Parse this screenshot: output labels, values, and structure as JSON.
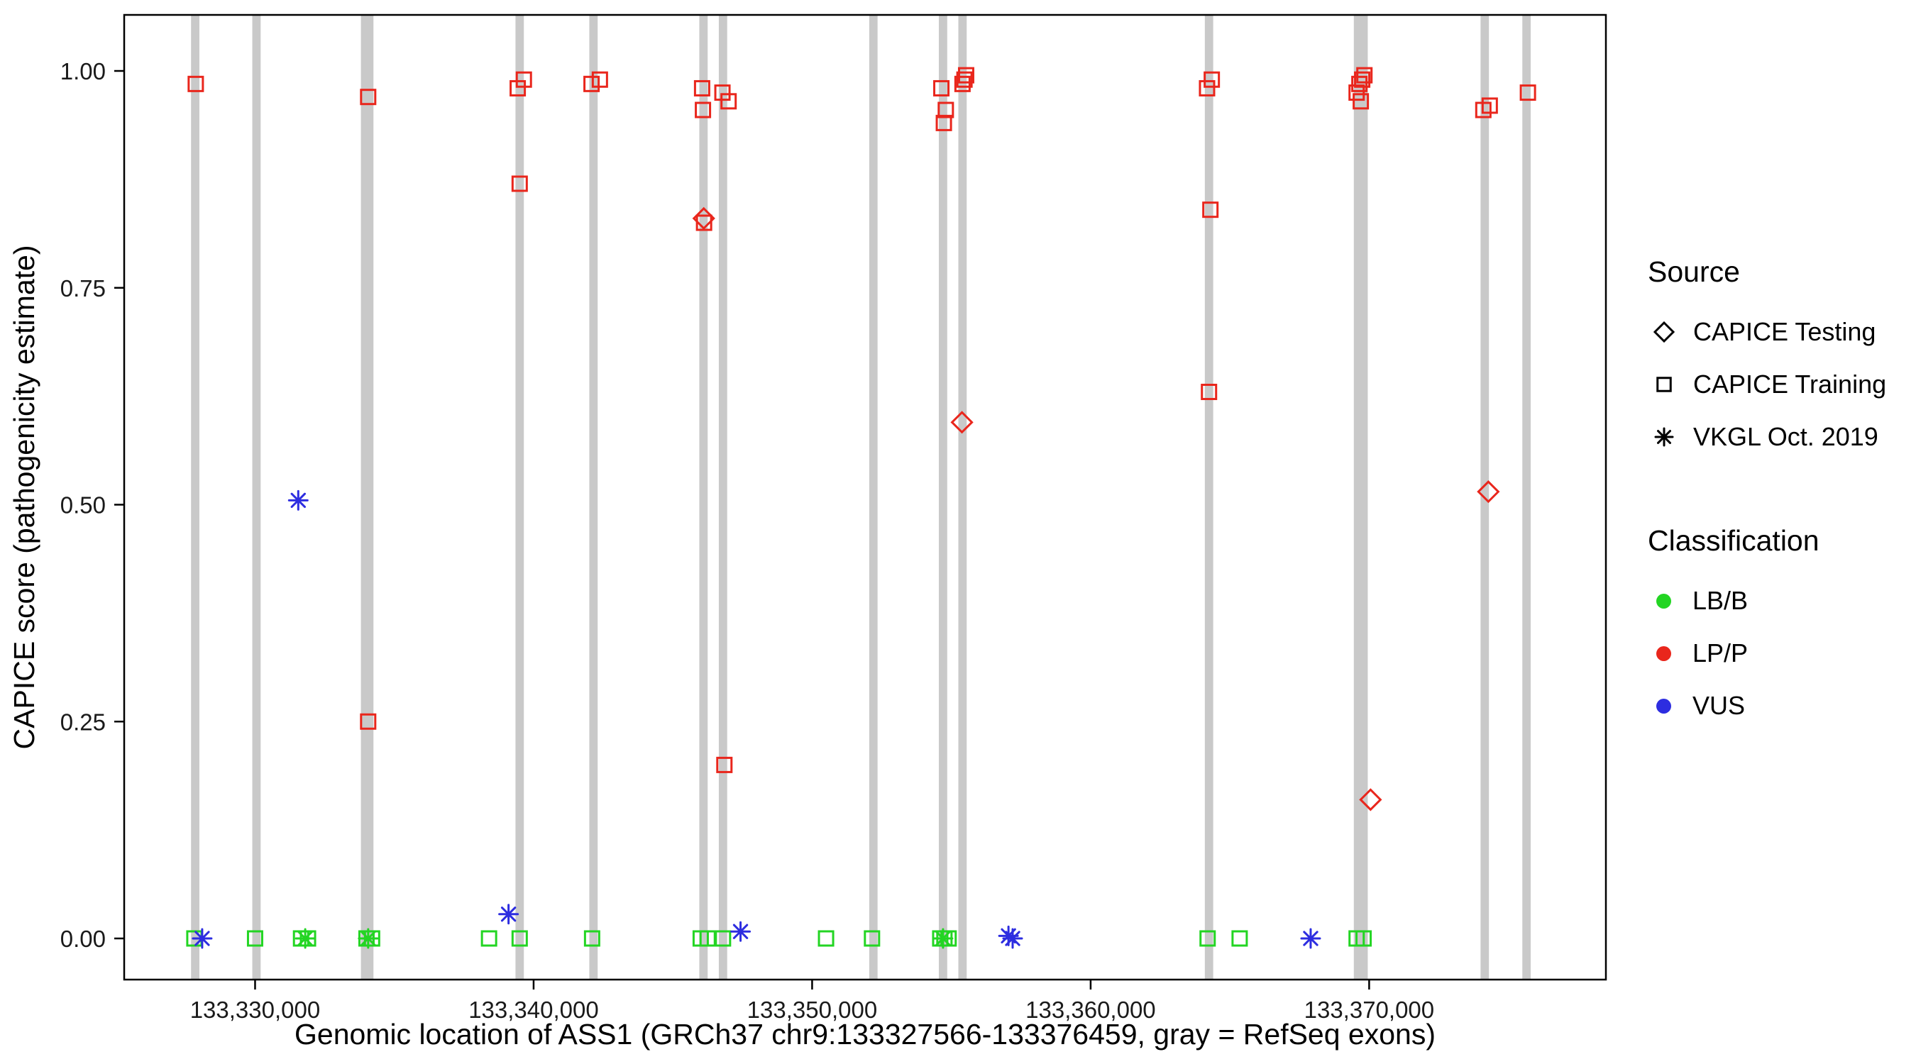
{
  "figure": {
    "background": "#ffffff"
  },
  "chart_data": {
    "type": "scatter",
    "title": "",
    "xlabel": "Genomic location of ASS1 (GRCh37 chr9:133327566-133376459, gray = RefSeq exons)",
    "ylabel": "CAPICE score (pathogenicity estimate)",
    "x_domain": [
      133325300,
      133378500
    ],
    "y_domain": [
      0,
      1
    ],
    "grid": false,
    "legend_position": "right",
    "x_ticks": [
      {
        "value": 133330000,
        "label": "133,330,000"
      },
      {
        "value": 133340000,
        "label": "133,340,000"
      },
      {
        "value": 133350000,
        "label": "133,350,000"
      },
      {
        "value": 133360000,
        "label": "133,360,000"
      },
      {
        "value": 133370000,
        "label": "133,370,000"
      }
    ],
    "y_ticks": [
      {
        "value": 0,
        "label": "0.00"
      },
      {
        "value": 0.25,
        "label": "0.25"
      },
      {
        "value": 0.5,
        "label": "0.50"
      },
      {
        "value": 0.75,
        "label": "0.75"
      },
      {
        "value": 1,
        "label": "1.00"
      }
    ],
    "exon_color": "#c9c9c9",
    "exons": [
      [
        133327700,
        133328000
      ],
      [
        133329900,
        133330200
      ],
      [
        133333800,
        133334250
      ],
      [
        133339350,
        133339650
      ],
      [
        133342000,
        133342300
      ],
      [
        133345950,
        133346250
      ],
      [
        133346650,
        133346950
      ],
      [
        133352050,
        133352350
      ],
      [
        133354550,
        133354850
      ],
      [
        133355250,
        133355550
      ],
      [
        133364100,
        133364400
      ],
      [
        133369450,
        133369950
      ],
      [
        133374000,
        133374300
      ],
      [
        133375500,
        133375800
      ]
    ],
    "series": [
      {
        "name": "CAPICE Training LP/P",
        "source": "CAPICE Training",
        "classification": "LP/P",
        "shape": "square",
        "color": "#e9261c",
        "points": [
          [
            133327870,
            0.985
          ],
          [
            133334060,
            0.97
          ],
          [
            133334060,
            0.25
          ],
          [
            133339430,
            0.98
          ],
          [
            133339650,
            0.99
          ],
          [
            133339500,
            0.87
          ],
          [
            133342080,
            0.985
          ],
          [
            133342380,
            0.99
          ],
          [
            133346050,
            0.98
          ],
          [
            133346080,
            0.955
          ],
          [
            133346120,
            0.825
          ],
          [
            133346780,
            0.975
          ],
          [
            133347000,
            0.965
          ],
          [
            133346850,
            0.2
          ],
          [
            133354640,
            0.98
          ],
          [
            133354800,
            0.955
          ],
          [
            133354730,
            0.94
          ],
          [
            133355400,
            0.985
          ],
          [
            133355470,
            0.99
          ],
          [
            133355530,
            0.995
          ],
          [
            133364180,
            0.98
          ],
          [
            133364350,
            0.99
          ],
          [
            133364300,
            0.84
          ],
          [
            133364250,
            0.63
          ],
          [
            133369550,
            0.975
          ],
          [
            133369650,
            0.985
          ],
          [
            133369750,
            0.99
          ],
          [
            133369830,
            0.995
          ],
          [
            133369700,
            0.965
          ],
          [
            133374100,
            0.955
          ],
          [
            133374330,
            0.96
          ],
          [
            133375700,
            0.975
          ]
        ]
      },
      {
        "name": "CAPICE Training LB/B",
        "source": "CAPICE Training",
        "classification": "LB/B",
        "shape": "square",
        "color": "#23d523",
        "points": [
          [
            133327820,
            0
          ],
          [
            133330000,
            0
          ],
          [
            133331650,
            0
          ],
          [
            133331900,
            0
          ],
          [
            133334000,
            0
          ],
          [
            133334200,
            0
          ],
          [
            133338400,
            0
          ],
          [
            133339500,
            0
          ],
          [
            133342100,
            0
          ],
          [
            133346000,
            0
          ],
          [
            133346250,
            0
          ],
          [
            133346800,
            0
          ],
          [
            133350500,
            0
          ],
          [
            133352150,
            0
          ],
          [
            133354600,
            0
          ],
          [
            133354750,
            0
          ],
          [
            133354900,
            0
          ],
          [
            133364200,
            0
          ],
          [
            133365350,
            0
          ],
          [
            133369550,
            0
          ],
          [
            133369800,
            0
          ]
        ]
      },
      {
        "name": "CAPICE Testing LP/P",
        "source": "CAPICE Testing",
        "classification": "LP/P",
        "shape": "diamond",
        "color": "#e9261c",
        "points": [
          [
            133346110,
            0.83
          ],
          [
            133355380,
            0.595
          ],
          [
            133370050,
            0.16
          ],
          [
            133374280,
            0.515
          ]
        ]
      },
      {
        "name": "VKGL Oct. 2019 VUS",
        "source": "VKGL Oct. 2019",
        "classification": "VUS",
        "shape": "asterisk",
        "color": "#2d2de0",
        "points": [
          [
            133328100,
            0
          ],
          [
            133331550,
            0.505
          ],
          [
            133339100,
            0.028
          ],
          [
            133347430,
            0.008
          ],
          [
            133357050,
            0.003
          ],
          [
            133357200,
            0
          ],
          [
            133367900,
            0
          ]
        ]
      },
      {
        "name": "VKGL Oct. 2019 LB/B",
        "source": "VKGL Oct. 2019",
        "classification": "LB/B",
        "shape": "asterisk",
        "color": "#23d523",
        "points": [
          [
            133331800,
            0
          ],
          [
            133334060,
            0
          ],
          [
            133354700,
            0
          ]
        ]
      }
    ]
  },
  "legend": {
    "source": {
      "title": "Source",
      "items": [
        {
          "label": "CAPICE Testing",
          "shape": "diamond"
        },
        {
          "label": "CAPICE Training",
          "shape": "square"
        },
        {
          "label": "VKGL Oct. 2019",
          "shape": "asterisk"
        }
      ]
    },
    "classification": {
      "title": "Classification",
      "items": [
        {
          "label": "LB/B",
          "color": "#23d523"
        },
        {
          "label": "LP/P",
          "color": "#e9261c"
        },
        {
          "label": "VUS",
          "color": "#2d2de0"
        }
      ]
    }
  }
}
